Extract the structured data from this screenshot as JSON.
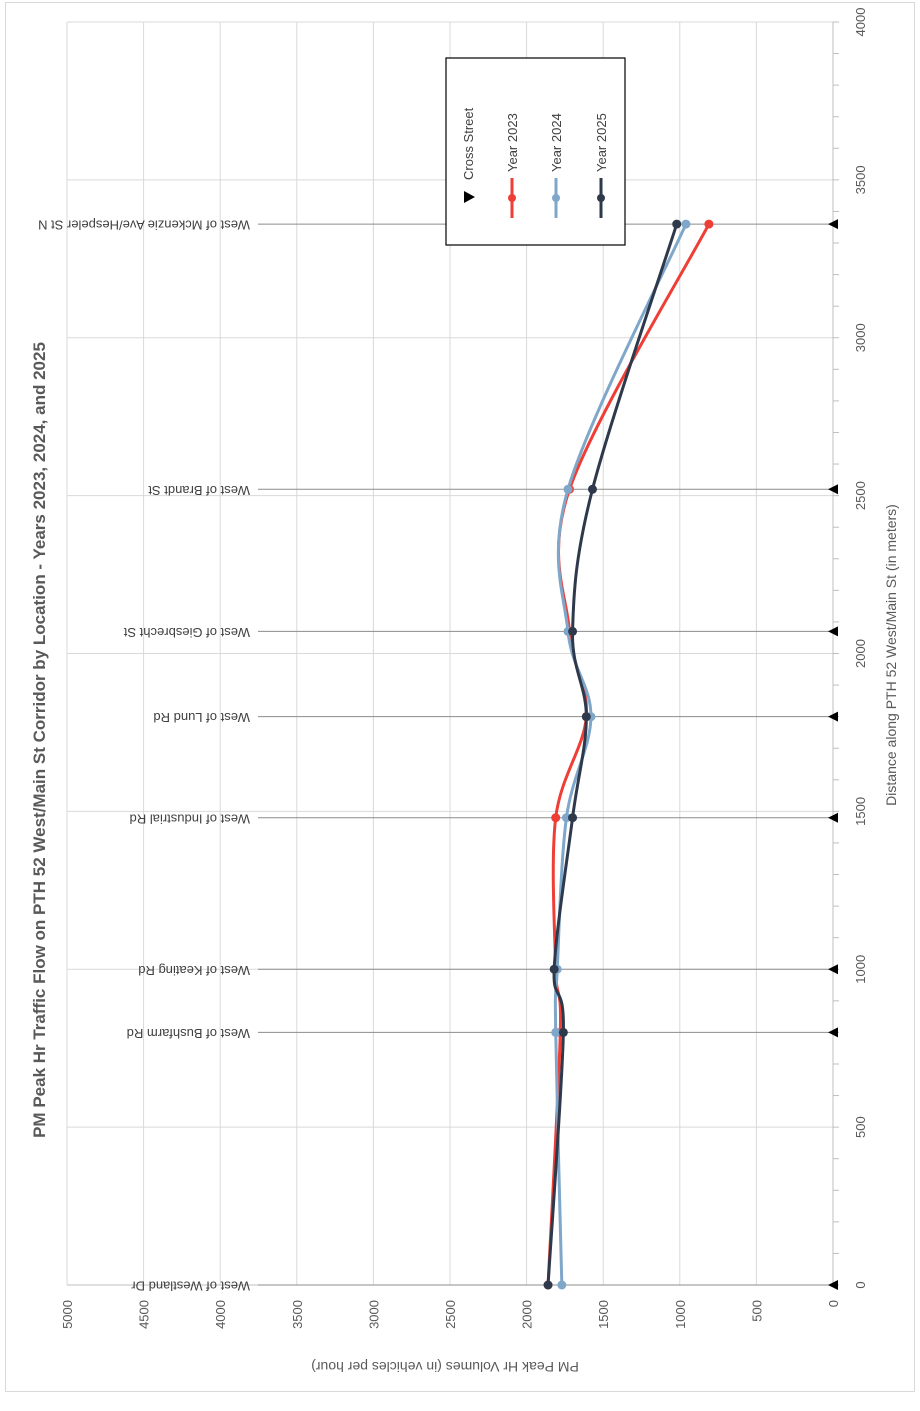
{
  "chart_data": {
    "type": "line",
    "orientation": "rotated-90-clockwise",
    "title": "PM Peak Hr Traffic Flow on PTH 52 West/Main St Corridor by Location - Years 2023, 2024, and 2025",
    "xlabel": "Distance along PTH 52 West/Main St (in meters)",
    "ylabel": "PM Peak Hr Volumes (in vehicles per hour)",
    "xlim": [
      0,
      4000
    ],
    "ylim": [
      0,
      5000
    ],
    "x_ticks": [
      "0",
      "500",
      "1000",
      "1500",
      "2000",
      "2500",
      "3000",
      "3500",
      "4000"
    ],
    "y_ticks": [
      "0",
      "500",
      "1000",
      "1500",
      "2000",
      "2500",
      "3000",
      "3500",
      "4000",
      "4500",
      "5000"
    ],
    "grid": true,
    "legend_position": "top-right",
    "cross_streets": {
      "name": "Cross Street",
      "marker": "triangle",
      "x": [
        0,
        800,
        1000,
        1480,
        1800,
        2070,
        2520,
        3360
      ],
      "labels": [
        "West of Westland Dr",
        "West of Bushfarm Rd",
        "West of Keating Rd",
        "West of Industrial Rd",
        "West of Lund Rd",
        "West of Giesbrecht St",
        "West of Brandt St",
        "West of Mckenzie Ave/Hespeler St N"
      ]
    },
    "x": [
      0,
      800,
      1000,
      1480,
      1800,
      2070,
      2520,
      3360
    ],
    "series": [
      {
        "name": "Year 2023",
        "color": "#ef3e36",
        "values": [
          1860,
          1780,
          1810,
          1810,
          1610,
          1720,
          1720,
          810
        ]
      },
      {
        "name": "Year 2024",
        "color": "#7fa7c9",
        "values": [
          1770,
          1810,
          1800,
          1740,
          1580,
          1730,
          1730,
          960
        ]
      },
      {
        "name": "Year 2025",
        "color": "#2e3a4c",
        "values": [
          1860,
          1760,
          1820,
          1700,
          1610,
          1700,
          1570,
          1020
        ]
      }
    ]
  }
}
